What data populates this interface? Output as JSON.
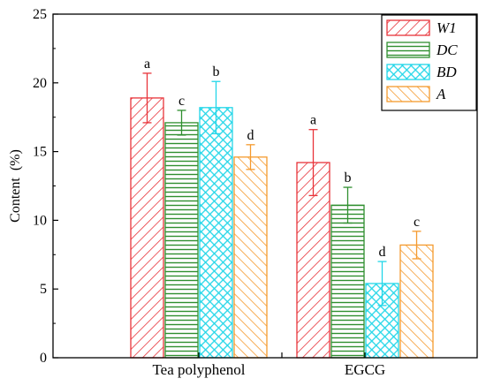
{
  "chart_data": {
    "type": "bar",
    "categories": [
      "Tea polyphenol",
      "EGCG"
    ],
    "ylabel": "Content  (%)",
    "xlabel": "",
    "ylim": [
      0,
      25
    ],
    "yticks": [
      0,
      5,
      10,
      15,
      20,
      25
    ],
    "legend_position": "top-right",
    "series": [
      {
        "name": "W1",
        "color": "#e8343a",
        "pattern": "diag-right",
        "values": [
          18.9,
          14.2
        ],
        "errors": [
          1.8,
          2.4
        ],
        "labels": [
          "a",
          "a"
        ]
      },
      {
        "name": "DC",
        "color": "#2f8f2f",
        "pattern": "horizontal",
        "values": [
          17.1,
          11.1
        ],
        "errors": [
          0.9,
          1.3
        ],
        "labels": [
          "c",
          "b"
        ]
      },
      {
        "name": "BD",
        "color": "#22d6e8",
        "pattern": "crosshatch",
        "values": [
          18.2,
          5.4
        ],
        "errors": [
          1.9,
          1.6
        ],
        "labels": [
          "b",
          "d"
        ]
      },
      {
        "name": "A",
        "color": "#f59a2e",
        "pattern": "diag-left",
        "values": [
          14.6,
          8.2
        ],
        "errors": [
          0.9,
          1.0
        ],
        "labels": [
          "d",
          "c"
        ]
      }
    ]
  }
}
